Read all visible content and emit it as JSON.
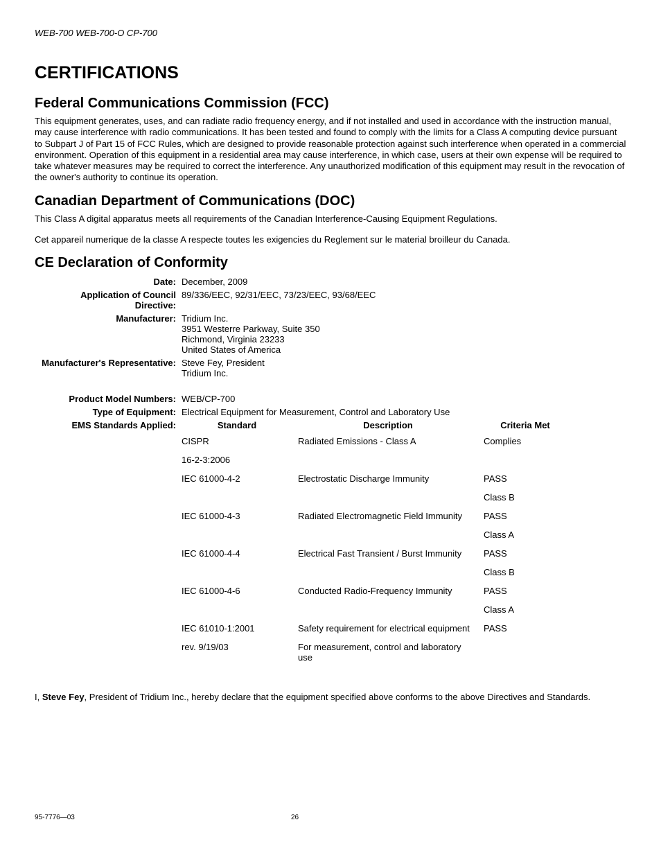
{
  "header": "WEB-700 WEB-700-O CP-700",
  "title": "CERTIFICATIONS",
  "fcc": {
    "heading": "Federal Communications Commission (FCC)",
    "text": "This equipment generates, uses, and can radiate radio frequency energy, and if not installed and used in accordance with the instruction manual, may cause interference with radio communications. It has been tested and found to comply with the limits for a Class A computing device pursuant to Subpart J of Part 15 of FCC Rules, which are designed to provide reasonable protection against such interference when operated in a commercial environment. Operation of this equipment in a residential area may cause interference, in which case, users at their own expense will be required to take whatever measures may be required to correct the interference. Any unauthorized modification of this equipment may result in the revocation of the owner's authority to continue its operation."
  },
  "doc": {
    "heading": "Canadian Department of Communications (DOC)",
    "p1": "This Class A digital apparatus meets all requirements of the Canadian Interference-Causing Equipment Regulations.",
    "p2": "Cet appareil numerique de la classe A respecte toutes les exigencies du Reglement sur le material broilleur du Canada."
  },
  "ce": {
    "heading": "CE Declaration of Conformity",
    "date_label": "Date:",
    "date_value": "December, 2009",
    "app_label": "Application of Council Directive:",
    "app_value": "89/336/EEC, 92/31/EEC, 73/23/EEC, 93/68/EEC",
    "mfr_label": "Manufacturer:",
    "mfr_l1": "Tridium Inc.",
    "mfr_l2": "3951 Westerre Parkway, Suite 350",
    "mfr_l3": "Richmond, Virginia 23233",
    "mfr_l4": "United States of America",
    "rep_label": "Manufacturer's Representative:",
    "rep_l1": "Steve Fey, President",
    "rep_l2": "Tridium Inc.",
    "model_label": "Product Model Numbers:",
    "model_value": "WEB/CP-700",
    "type_label": "Type of Equipment:",
    "type_value": "Electrical Equipment for Measurement, Control and Laboratory Use",
    "ems_label": "EMS Standards Applied:",
    "col_std": "Standard",
    "col_desc": "Description",
    "col_crit": "Criteria Met",
    "rows": [
      {
        "std": "CISPR",
        "desc": "Radiated Emissions - Class A",
        "crit": "Complies"
      },
      {
        "std": "16-2-3:2006",
        "desc": "",
        "crit": ""
      },
      {
        "std": "IEC 61000-4-2",
        "desc": "Electrostatic Discharge Immunity",
        "crit": "PASS"
      },
      {
        "std": "",
        "desc": "",
        "crit": "Class B"
      },
      {
        "std": "IEC 61000-4-3",
        "desc": "Radiated Electromagnetic Field Immunity",
        "crit": "PASS"
      },
      {
        "std": "",
        "desc": "",
        "crit": "Class A"
      },
      {
        "std": "IEC 61000-4-4",
        "desc": "Electrical Fast Transient / Burst Immunity",
        "crit": "PASS"
      },
      {
        "std": "",
        "desc": "",
        "crit": "Class B"
      },
      {
        "std": "IEC 61000-4-6",
        "desc": "Conducted Radio-Frequency Immunity",
        "crit": "PASS"
      },
      {
        "std": "",
        "desc": "",
        "crit": "Class A"
      },
      {
        "std": "IEC 61010-1:2001",
        "desc": "Safety requirement for electrical equipment",
        "crit": "PASS"
      },
      {
        "std": "rev. 9/19/03",
        "desc": "For measurement, control and laboratory use",
        "crit": ""
      }
    ]
  },
  "declaration": {
    "pre": "I, ",
    "name": "Steve Fey",
    "post": ", President of Tridium Inc., hereby declare that the equipment specified above conforms to the above Directives and Standards."
  },
  "footer": {
    "doc_num": "95-7776—03",
    "page": "26"
  }
}
